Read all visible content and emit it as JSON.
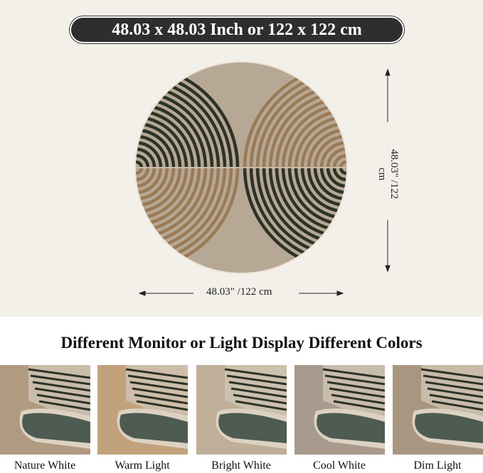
{
  "size_banner": "48.03 x 48.03 Inch or 122 x 122 cm",
  "width_label": "48.03\" /122 cm",
  "height_label": "48.03\" /122 cm",
  "heading": "Different Monitor or Light Display Different Colors",
  "colors": {
    "background": "#f3f0ea",
    "rug_base": "#b7a795",
    "dark_stripe": "#2c3226",
    "tan_stripe": "#9a7a55",
    "banner": "#2e2e2e"
  },
  "lighting": [
    {
      "label": "Nature White",
      "tint": "#b09a80"
    },
    {
      "label": "Warm Light",
      "tint": "#c2a27c"
    },
    {
      "label": "Bright White",
      "tint": "#bfae98"
    },
    {
      "label": "Cool White",
      "tint": "#a89a8c"
    },
    {
      "label": "Dim Light",
      "tint": "#a89680"
    }
  ]
}
